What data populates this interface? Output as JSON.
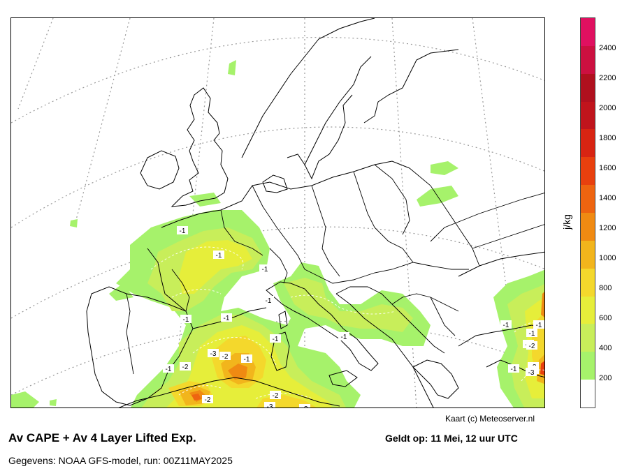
{
  "title": "Av CAPE + Av 4 Layer Lifted Exp.",
  "valid_time": "Geldt op: 11 Mei, 12 uur UTC",
  "source": "Gegevens: NOAA GFS-model, run: 00Z11MAY2025",
  "credit": "Kaart (c) Meteoserver.nl",
  "legend": {
    "unit": "j/kg",
    "ticks": [
      "200",
      "400",
      "600",
      "800",
      "1000",
      "1200",
      "1400",
      "1600",
      "1800",
      "2000",
      "2200",
      "2400"
    ],
    "colors": [
      "#ffffff",
      "#a6f26b",
      "#c8ee5a",
      "#e6ee3a",
      "#f4d82c",
      "#f2b51c",
      "#f08a12",
      "#ee6410",
      "#e8400e",
      "#d82412",
      "#c0141c",
      "#b0101e",
      "#cc1040",
      "#e01060"
    ]
  },
  "lifted_index_labels": [
    "-1",
    "-1",
    "-1",
    "-1",
    "-1",
    "-1",
    "-1",
    "-1",
    "-1",
    "-1",
    "-1",
    "-2",
    "-3",
    "-2",
    "-1",
    "-2",
    "-2",
    "-3",
    "-2",
    "-1",
    "-1",
    "-2",
    "-1",
    "-2",
    "-1",
    "-3"
  ]
}
